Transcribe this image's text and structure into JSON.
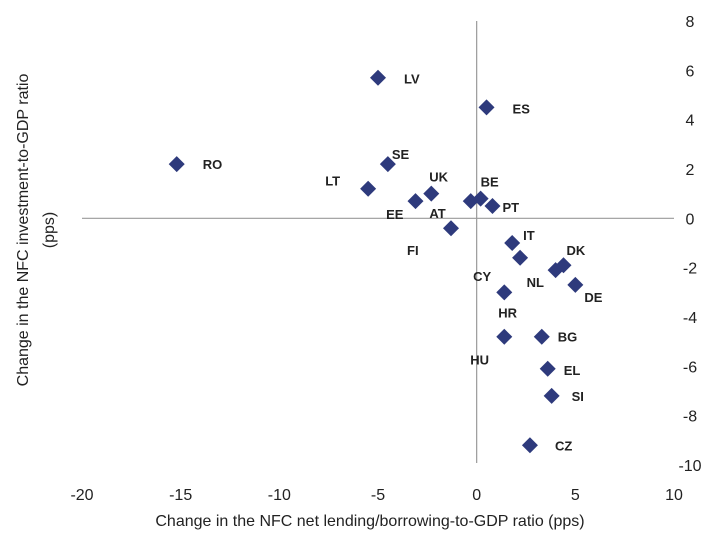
{
  "chart_data": {
    "type": "scatter",
    "xlabel": "Change in the NFC net lending/borrowing-to-GDP ratio (pps)",
    "ylabel_line1": "Change in the NFC investment-to-GDP ratio",
    "ylabel_line2": "(pps)",
    "xlim": [
      -20,
      10
    ],
    "ylim": [
      -10,
      8
    ],
    "xticks": [
      "-20",
      "-15",
      "-10",
      "-5",
      "0",
      "5",
      "10"
    ],
    "yticks": [
      "8",
      "6",
      "4",
      "2",
      "0",
      "-2",
      "-4",
      "-6",
      "-8",
      "-10"
    ],
    "marker_color": "#2e3a7c",
    "points": [
      {
        "label": "RO",
        "x": -15.2,
        "y": 2.2
      },
      {
        "label": "LV",
        "x": -5.0,
        "y": 5.7
      },
      {
        "label": "ES",
        "x": 0.5,
        "y": 4.5
      },
      {
        "label": "SE",
        "x": -4.5,
        "y": 2.2
      },
      {
        "label": "LT",
        "x": -5.5,
        "y": 1.2
      },
      {
        "label": "UK",
        "x": -2.3,
        "y": 1.0
      },
      {
        "label": "EE",
        "x": -3.1,
        "y": 0.7
      },
      {
        "label": "AT",
        "x": -0.3,
        "y": 0.7
      },
      {
        "label": "BE",
        "x": 0.2,
        "y": 0.8
      },
      {
        "label": "PT",
        "x": 0.8,
        "y": 0.5
      },
      {
        "label": "FI",
        "x": -1.3,
        "y": -0.4
      },
      {
        "label": "IT",
        "x": 1.8,
        "y": -1.0
      },
      {
        "label": "CY",
        "x": 2.2,
        "y": -1.6
      },
      {
        "label": "DK",
        "x": 4.4,
        "y": -1.9
      },
      {
        "label": "NL",
        "x": 4.0,
        "y": -2.1
      },
      {
        "label": "DE",
        "x": 5.0,
        "y": -2.7
      },
      {
        "label": "HR",
        "x": 1.4,
        "y": -3.0
      },
      {
        "label": "HU",
        "x": 1.4,
        "y": -4.8
      },
      {
        "label": "BG",
        "x": 3.3,
        "y": -4.8
      },
      {
        "label": "EL",
        "x": 3.6,
        "y": -6.1
      },
      {
        "label": "SI",
        "x": 3.8,
        "y": -7.2
      },
      {
        "label": "CZ",
        "x": 2.7,
        "y": -9.2
      }
    ]
  }
}
